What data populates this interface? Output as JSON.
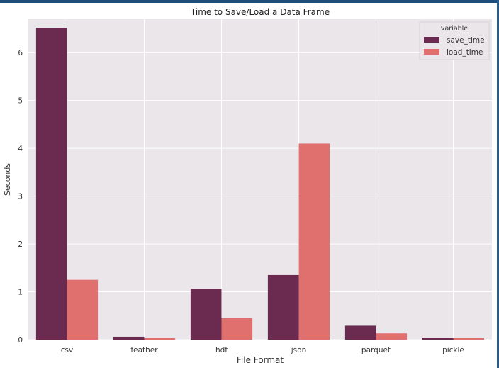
{
  "chart_data": {
    "type": "bar",
    "title": "Time to Save/Load a Data Frame",
    "xlabel": "File Format",
    "ylabel": "Seconds",
    "categories": [
      "csv",
      "feather",
      "hdf",
      "json",
      "parquet",
      "pickle"
    ],
    "series": [
      {
        "name": "save_time",
        "values": [
          6.52,
          0.06,
          1.06,
          1.35,
          0.29,
          0.04
        ],
        "color": "#6b2a4f"
      },
      {
        "name": "load_time",
        "values": [
          1.25,
          0.03,
          0.45,
          4.1,
          0.13,
          0.04
        ],
        "color": "#e0706e"
      }
    ],
    "ylim": [
      0,
      6.7
    ],
    "yticks": [
      0,
      1,
      2,
      3,
      4,
      5,
      6
    ],
    "grid": true,
    "legend": {
      "title": "variable",
      "placement": "top-right"
    },
    "background": "#eae6ea"
  }
}
